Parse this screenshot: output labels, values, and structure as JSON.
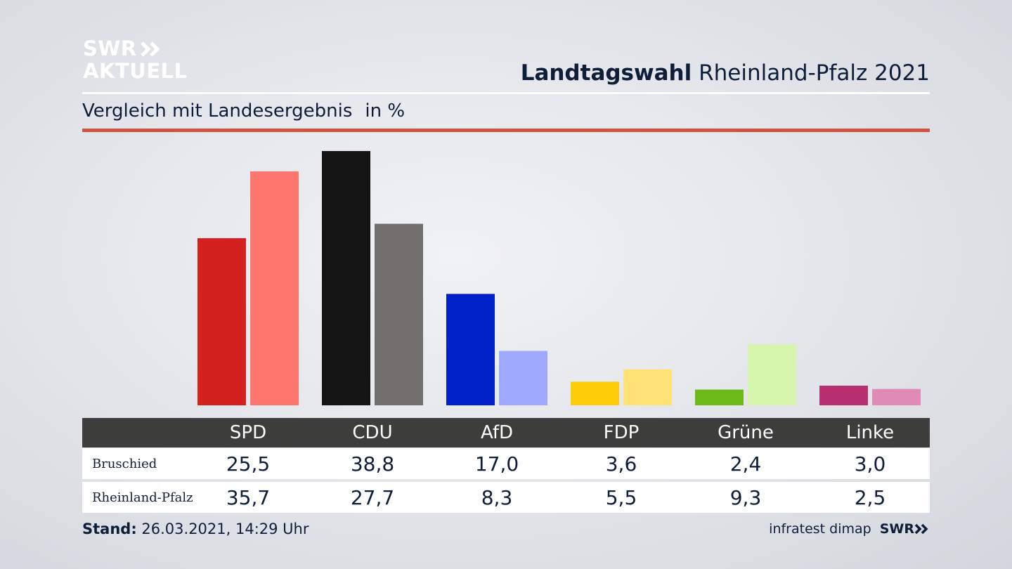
{
  "logo": {
    "line1": "SWR",
    "line2": "AKTUELL"
  },
  "header": {
    "title_bold": "Landtagswahl",
    "title_rest": " Rheinland-Pfalz 2021"
  },
  "subtitle": {
    "text": "Vergleich mit Landesergebnis",
    "unit": "in %"
  },
  "colors": {
    "accent_rule": "#cf5340",
    "navy": "#0e1d3a",
    "table_header": "#3d3d3c",
    "SPD": [
      "#d52020",
      "#ff766e"
    ],
    "CDU": [
      "#141414",
      "#706f6d"
    ],
    "AfD": [
      "#0020c9",
      "#9faaff"
    ],
    "FDP": [
      "#ffcc0a",
      "#ffe276"
    ],
    "Grüne": [
      "#6bba17",
      "#d6f5ad"
    ],
    "Linke": [
      "#b82f6f",
      "#e08ab6"
    ]
  },
  "chart_data": {
    "type": "bar",
    "categories": [
      "SPD",
      "CDU",
      "AfD",
      "FDP",
      "Grüne",
      "Linke"
    ],
    "series": [
      {
        "name": "Bruschied",
        "values": [
          25.5,
          38.8,
          17.0,
          3.6,
          2.4,
          3.0
        ]
      },
      {
        "name": "Rheinland-Pfalz",
        "values": [
          35.7,
          27.7,
          8.3,
          5.5,
          9.3,
          2.5
        ]
      }
    ],
    "ylim": [
      0,
      38.8
    ],
    "grid": false,
    "legend": "none"
  },
  "table": {
    "headers": [
      "SPD",
      "CDU",
      "AfD",
      "FDP",
      "Grüne",
      "Linke"
    ],
    "rows": [
      {
        "label": "Bruschied",
        "values": [
          "25,5",
          "38,8",
          "17,0",
          "3,6",
          "2,4",
          "3,0"
        ]
      },
      {
        "label": "Rheinland-Pfalz",
        "values": [
          "35,7",
          "27,7",
          "8,3",
          "5,5",
          "9,3",
          "2,5"
        ]
      }
    ]
  },
  "footer": {
    "stand_label": "Stand:",
    "stand_value": " 26.03.2021, 14:29 Uhr",
    "source": "infratest dimap",
    "brand": "SWR"
  }
}
